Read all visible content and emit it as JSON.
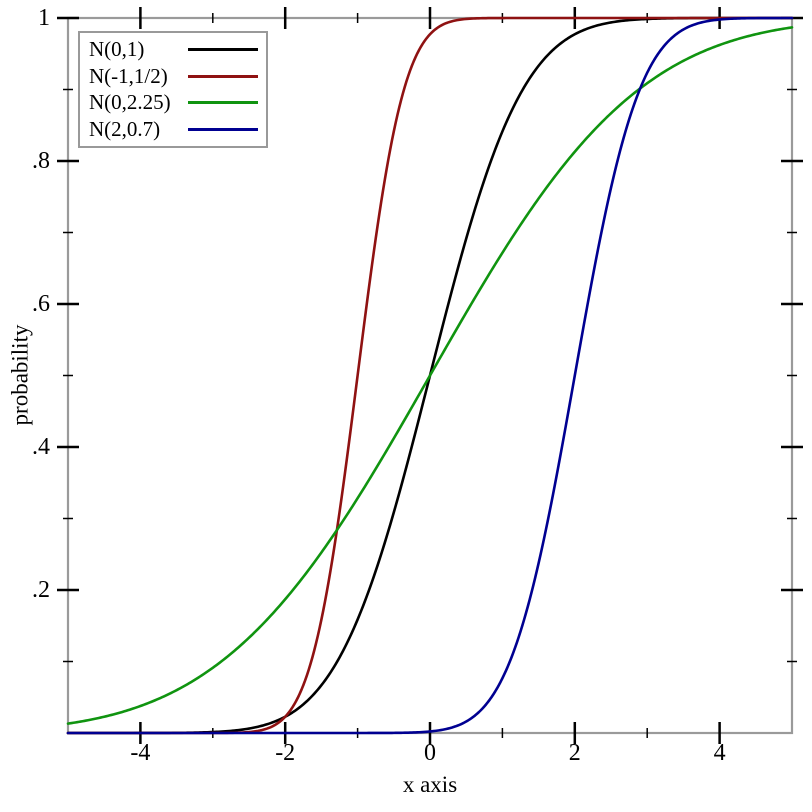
{
  "chart_data": {
    "type": "line",
    "title": "",
    "xlabel": "x axis",
    "ylabel": "probability",
    "xlim": [
      -5,
      5
    ],
    "ylim": [
      0,
      1
    ],
    "grid": false,
    "legend_position": "top-left",
    "frame_color": "#9a9a9a",
    "tick_color": "#000000",
    "x_major_ticks": [
      {
        "v": -4,
        "label": "-4"
      },
      {
        "v": -2,
        "label": "-2"
      },
      {
        "v": 0,
        "label": "0"
      },
      {
        "v": 2,
        "label": "2"
      },
      {
        "v": 4,
        "label": "4"
      }
    ],
    "x_minor_ticks": [
      -3,
      -1,
      1,
      3
    ],
    "y_major_ticks": [
      {
        "v": 0.2,
        "label": ".2"
      },
      {
        "v": 0.4,
        "label": ".4"
      },
      {
        "v": 0.6,
        "label": ".6"
      },
      {
        "v": 0.8,
        "label": ".8"
      },
      {
        "v": 1,
        "label": "1"
      }
    ],
    "y_minor_ticks": [
      0.1,
      0.3,
      0.5,
      0.7,
      0.9
    ],
    "series": [
      {
        "name": "N(0,1)",
        "curve": "normal-cdf",
        "mean": 0,
        "sd": 1,
        "color": "#000000"
      },
      {
        "name": "N(-1,1/2)",
        "curve": "normal-cdf",
        "mean": -1,
        "sd": 0.5,
        "color": "#8f1212"
      },
      {
        "name": "N(0,2.25)",
        "curve": "normal-cdf",
        "mean": 0,
        "sd": 2.25,
        "color": "#109410"
      },
      {
        "name": "N(2,0.7)",
        "curve": "normal-cdf",
        "mean": 2,
        "sd": 0.7,
        "color": "#000091"
      }
    ]
  }
}
